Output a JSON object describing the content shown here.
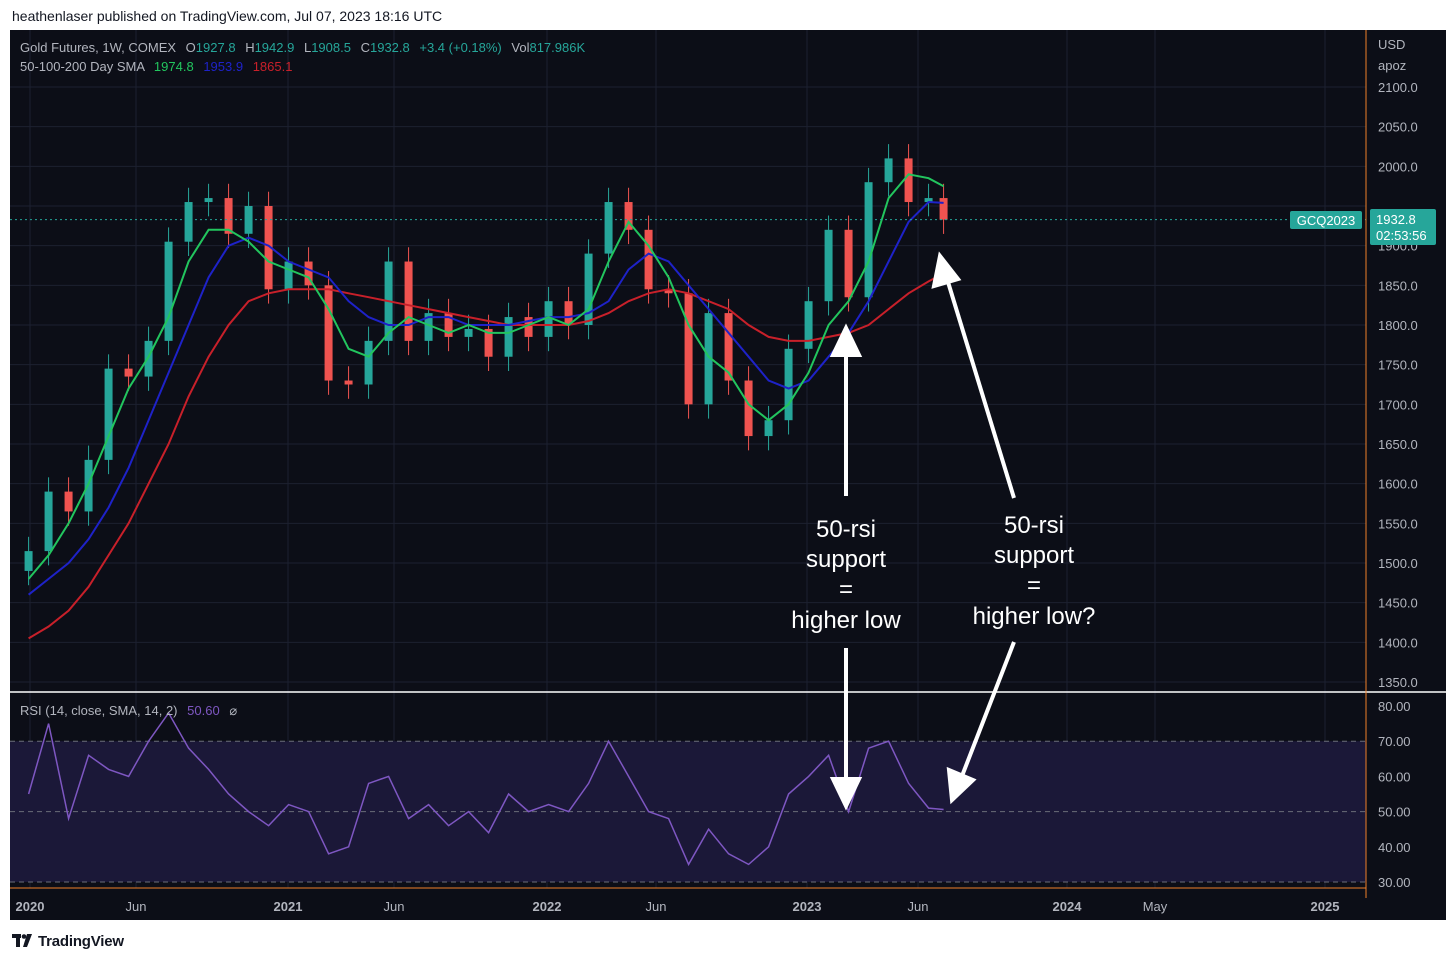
{
  "header": {
    "publisher_line": "heathenlaser published on TradingView.com, Jul 07, 2023 18:16 UTC"
  },
  "footer": {
    "brand": "TradingView"
  },
  "legend": {
    "symbol_line": "Gold Futures, 1W, COMEX",
    "open_label": "O",
    "open": "1927.8",
    "high_label": "H",
    "high": "1942.9",
    "low_label": "L",
    "low": "1908.5",
    "close_label": "C",
    "close": "1932.8",
    "change": "+3.4 (+0.18%)",
    "vol_label": "Vol",
    "vol": "817.986K",
    "sma_line": "50-100-200 Day SMA",
    "sma50": "1974.8",
    "sma100": "1953.9",
    "sma200": "1865.1",
    "rsi_line": "RSI (14, close, SMA, 14, 2)",
    "rsi_value": "50.60",
    "rsi_icon": "⌀"
  },
  "price_scale": {
    "currency": "USD",
    "secondary": "apoz"
  },
  "last_price": {
    "ticker": "GCQ2023",
    "price": "1932.8",
    "countdown": "02:53:56"
  },
  "annotations": [
    {
      "lines": [
        "50-rsi",
        "support",
        "=",
        "higher low"
      ]
    },
    {
      "lines": [
        "50-rsi",
        "support",
        "=",
        "higher low?"
      ]
    }
  ],
  "colors": {
    "background": "#0c0e17",
    "grid": "#1c2030",
    "text": "#b2b5be",
    "up": "#26a69a",
    "down": "#ef5350",
    "sma50": "#22c55e",
    "sma100": "#1e22c8",
    "sma200": "#c8202a",
    "rsi": "#7e57c2",
    "rsi_band": "#1b1838",
    "axis_line": "#f0802a",
    "badge": "#26a69a"
  },
  "chart_data": [
    {
      "type": "candlestick",
      "title": "Gold Futures, 1W, COMEX",
      "x": [
        "2019-12-30",
        "2020-01-27",
        "2020-02-24",
        "2020-03-23",
        "2020-04-20",
        "2020-05-18",
        "2020-06-15",
        "2020-07-13",
        "2020-08-10",
        "2020-09-07",
        "2020-10-05",
        "2020-11-02",
        "2020-11-30",
        "2020-12-28",
        "2021-01-25",
        "2021-02-22",
        "2021-03-22",
        "2021-04-19",
        "2021-05-17",
        "2021-06-14",
        "2021-07-12",
        "2021-08-09",
        "2021-09-06",
        "2021-10-04",
        "2021-11-01",
        "2021-11-29",
        "2021-12-27",
        "2022-01-24",
        "2022-02-21",
        "2022-03-21",
        "2022-04-18",
        "2022-05-16",
        "2022-06-13",
        "2022-07-11",
        "2022-08-08",
        "2022-09-05",
        "2022-10-03",
        "2022-10-31",
        "2022-11-28",
        "2022-12-26",
        "2023-01-23",
        "2023-02-20",
        "2023-03-20",
        "2023-04-17",
        "2023-05-15",
        "2023-06-12",
        "2023-07-03"
      ],
      "close": [
        1515,
        1590,
        1565,
        1630,
        1745,
        1735,
        1780,
        1905,
        1955,
        1960,
        1915,
        1950,
        1845,
        1880,
        1850,
        1730,
        1725,
        1780,
        1880,
        1780,
        1815,
        1785,
        1795,
        1760,
        1810,
        1785,
        1830,
        1800,
        1890,
        1955,
        1920,
        1845,
        1840,
        1700,
        1815,
        1730,
        1660,
        1680,
        1770,
        1830,
        1920,
        1835,
        1980,
        2010,
        1955,
        1960,
        1932.8
      ],
      "sma50": [
        1480,
        1510,
        1550,
        1600,
        1660,
        1720,
        1760,
        1810,
        1880,
        1920,
        1920,
        1905,
        1880,
        1870,
        1860,
        1820,
        1770,
        1760,
        1790,
        1810,
        1800,
        1790,
        1800,
        1790,
        1790,
        1800,
        1810,
        1800,
        1820,
        1880,
        1930,
        1900,
        1860,
        1800,
        1760,
        1740,
        1700,
        1680,
        1700,
        1740,
        1800,
        1830,
        1880,
        1960,
        1990,
        1985,
        1974.8
      ],
      "sma100": [
        1460,
        1480,
        1500,
        1530,
        1570,
        1620,
        1680,
        1740,
        1800,
        1860,
        1900,
        1910,
        1900,
        1880,
        1870,
        1860,
        1830,
        1810,
        1800,
        1800,
        1810,
        1810,
        1800,
        1800,
        1800,
        1805,
        1810,
        1810,
        1815,
        1830,
        1870,
        1890,
        1880,
        1850,
        1820,
        1790,
        1760,
        1730,
        1720,
        1730,
        1760,
        1790,
        1830,
        1880,
        1930,
        1955,
        1953.9
      ],
      "sma200": [
        1405,
        1420,
        1440,
        1470,
        1510,
        1550,
        1600,
        1650,
        1710,
        1760,
        1800,
        1830,
        1840,
        1845,
        1845,
        1845,
        1840,
        1835,
        1830,
        1825,
        1820,
        1815,
        1810,
        1805,
        1800,
        1800,
        1800,
        1800,
        1805,
        1815,
        1830,
        1840,
        1845,
        1840,
        1830,
        1820,
        1800,
        1785,
        1780,
        1780,
        1785,
        1790,
        1800,
        1820,
        1840,
        1855,
        1865.1
      ],
      "ylim": [
        1330,
        2110
      ]
    },
    {
      "type": "line",
      "title": "RSI (14, close, SMA, 14, 2)",
      "x": [
        "2019-12-30",
        "2020-01-27",
        "2020-02-24",
        "2020-03-23",
        "2020-04-20",
        "2020-05-18",
        "2020-06-15",
        "2020-07-13",
        "2020-08-10",
        "2020-09-07",
        "2020-10-05",
        "2020-11-02",
        "2020-11-30",
        "2020-12-28",
        "2021-01-25",
        "2021-02-22",
        "2021-03-22",
        "2021-04-19",
        "2021-05-17",
        "2021-06-14",
        "2021-07-12",
        "2021-08-09",
        "2021-09-06",
        "2021-10-04",
        "2021-11-01",
        "2021-11-29",
        "2021-12-27",
        "2022-01-24",
        "2022-02-21",
        "2022-03-21",
        "2022-04-18",
        "2022-05-16",
        "2022-06-13",
        "2022-07-11",
        "2022-08-08",
        "2022-09-05",
        "2022-10-03",
        "2022-10-31",
        "2022-11-28",
        "2022-12-26",
        "2023-01-23",
        "2023-02-20",
        "2023-03-20",
        "2023-04-17",
        "2023-05-15",
        "2023-06-12",
        "2023-07-03"
      ],
      "values": [
        55,
        75,
        48,
        66,
        62,
        60,
        70,
        78,
        68,
        62,
        55,
        50,
        46,
        52,
        50,
        38,
        40,
        58,
        60,
        48,
        52,
        46,
        50,
        44,
        55,
        50,
        52,
        50,
        58,
        70,
        60,
        50,
        48,
        35,
        45,
        38,
        35,
        40,
        55,
        60,
        66,
        50,
        68,
        70,
        58,
        51,
        50.6
      ],
      "ylim": [
        28,
        84
      ],
      "reference_lines": [
        70,
        50,
        30
      ]
    }
  ],
  "axes": {
    "price_ticks": [
      "2100.0",
      "2050.0",
      "2000.0",
      "1950.0",
      "1900.0",
      "1850.0",
      "1800.0",
      "1750.0",
      "1700.0",
      "1650.0",
      "1600.0",
      "1550.0",
      "1500.0",
      "1450.0",
      "1400.0",
      "1350.0"
    ],
    "rsi_ticks": [
      "80.00",
      "70.00",
      "60.00",
      "50.00",
      "40.00",
      "30.00"
    ],
    "time_ticks": [
      {
        "label": "2020",
        "bold": true
      },
      {
        "label": "Jun",
        "bold": false
      },
      {
        "label": "2021",
        "bold": true
      },
      {
        "label": "Jun",
        "bold": false
      },
      {
        "label": "2022",
        "bold": true
      },
      {
        "label": "Jun",
        "bold": false
      },
      {
        "label": "2023",
        "bold": true
      },
      {
        "label": "Jun",
        "bold": false
      },
      {
        "label": "2024",
        "bold": true
      },
      {
        "label": "May",
        "bold": false
      },
      {
        "label": "2025",
        "bold": true
      }
    ]
  }
}
